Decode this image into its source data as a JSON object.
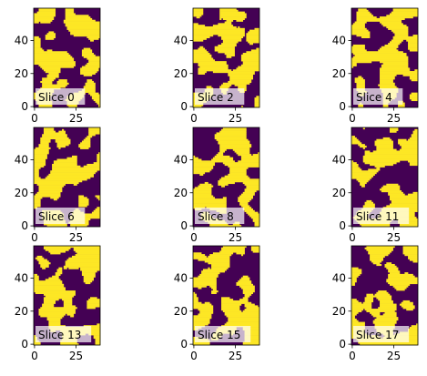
{
  "chart_data": {
    "type": "heatmap",
    "layout": {
      "rows": 3,
      "cols": 3
    },
    "colormap": {
      "low": "#440154",
      "high": "#fde725"
    },
    "image_shape": {
      "width": 40,
      "height": 60
    },
    "x_ticks": [
      0,
      25
    ],
    "y_ticks": [
      0,
      20,
      40
    ],
    "label_box": {
      "face": "#ffffff",
      "alpha": 0.7
    },
    "panels": [
      {
        "label": "Slice 0"
      },
      {
        "label": "Slice 2"
      },
      {
        "label": "Slice 4"
      },
      {
        "label": "Slice 6"
      },
      {
        "label": "Slice 8"
      },
      {
        "label": "Slice 11"
      },
      {
        "label": "Slice 13"
      },
      {
        "label": "Slice 15"
      },
      {
        "label": "Slice 17"
      }
    ]
  }
}
